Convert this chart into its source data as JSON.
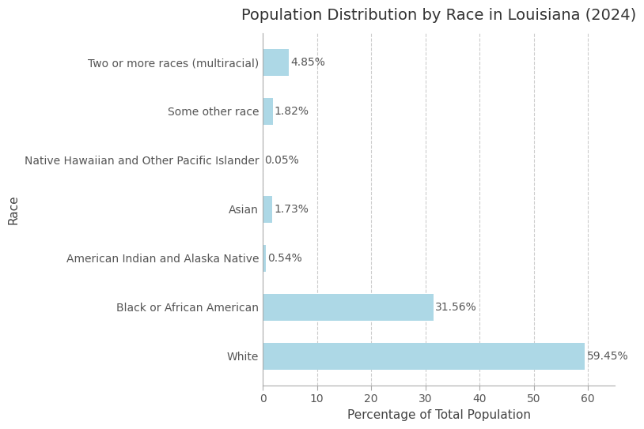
{
  "title": "Population Distribution by Race in Louisiana (2024)",
  "xlabel": "Percentage of Total Population",
  "ylabel": "Race",
  "categories": [
    "White",
    "Black or African American",
    "American Indian and Alaska Native",
    "Asian",
    "Native Hawaiian and Other Pacific Islander",
    "Some other race",
    "Two or more races (multiracial)"
  ],
  "values": [
    59.45,
    31.56,
    0.54,
    1.73,
    0.05,
    1.82,
    4.85
  ],
  "labels": [
    "59.45%",
    "31.56%",
    "0.54%",
    "1.73%",
    "0.05%",
    "1.82%",
    "4.85%"
  ],
  "bar_color": "#add8e6",
  "background_color": "#ffffff",
  "xlim": [
    0,
    65
  ],
  "xticks": [
    0,
    10,
    20,
    30,
    40,
    50,
    60
  ],
  "grid_color": "#cccccc",
  "title_fontsize": 14,
  "label_fontsize": 11,
  "tick_fontsize": 10,
  "bar_label_fontsize": 10,
  "bar_label_color": "#555555"
}
